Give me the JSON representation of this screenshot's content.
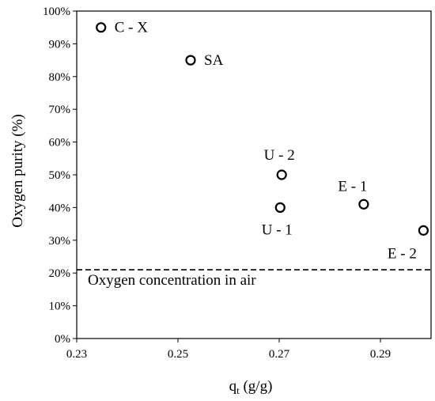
{
  "chart_data": {
    "type": "scatter",
    "xlabel": "qt (g/g)",
    "xlabel_main": "q",
    "xlabel_sub": "t",
    "xlabel_unit": " (g/g)",
    "ylabel": "Oxygen purity (%)",
    "xlim": [
      0.23,
      0.3
    ],
    "ylim": [
      0,
      100
    ],
    "x_ticks": [
      0.23,
      0.25,
      0.27,
      0.29
    ],
    "x_tick_labels": [
      "0.23",
      "0.25",
      "0.27",
      "0.29"
    ],
    "y_ticks": [
      0,
      10,
      20,
      30,
      40,
      50,
      60,
      70,
      80,
      90,
      100
    ],
    "y_tick_labels": [
      "0%",
      "10%",
      "20%",
      "30%",
      "40%",
      "50%",
      "60%",
      "70%",
      "80%",
      "90%",
      "100%"
    ],
    "grid": false,
    "legend": "none",
    "points": [
      {
        "label": "C - X",
        "x": 0.2348,
        "y": 95,
        "label_pos": "right"
      },
      {
        "label": "SA",
        "x": 0.2525,
        "y": 85,
        "label_pos": "right"
      },
      {
        "label": "U - 2",
        "x": 0.2705,
        "y": 50,
        "label_pos": "above"
      },
      {
        "label": "U - 1",
        "x": 0.2702,
        "y": 40,
        "label_pos": "below"
      },
      {
        "label": "E - 1",
        "x": 0.2867,
        "y": 41,
        "label_pos": "above-left"
      },
      {
        "label": "E - 2",
        "x": 0.2985,
        "y": 33,
        "label_pos": "below-left"
      }
    ],
    "reference_line": {
      "y": 21,
      "style": "dashed",
      "label": "Oxygen concentration in air"
    }
  }
}
